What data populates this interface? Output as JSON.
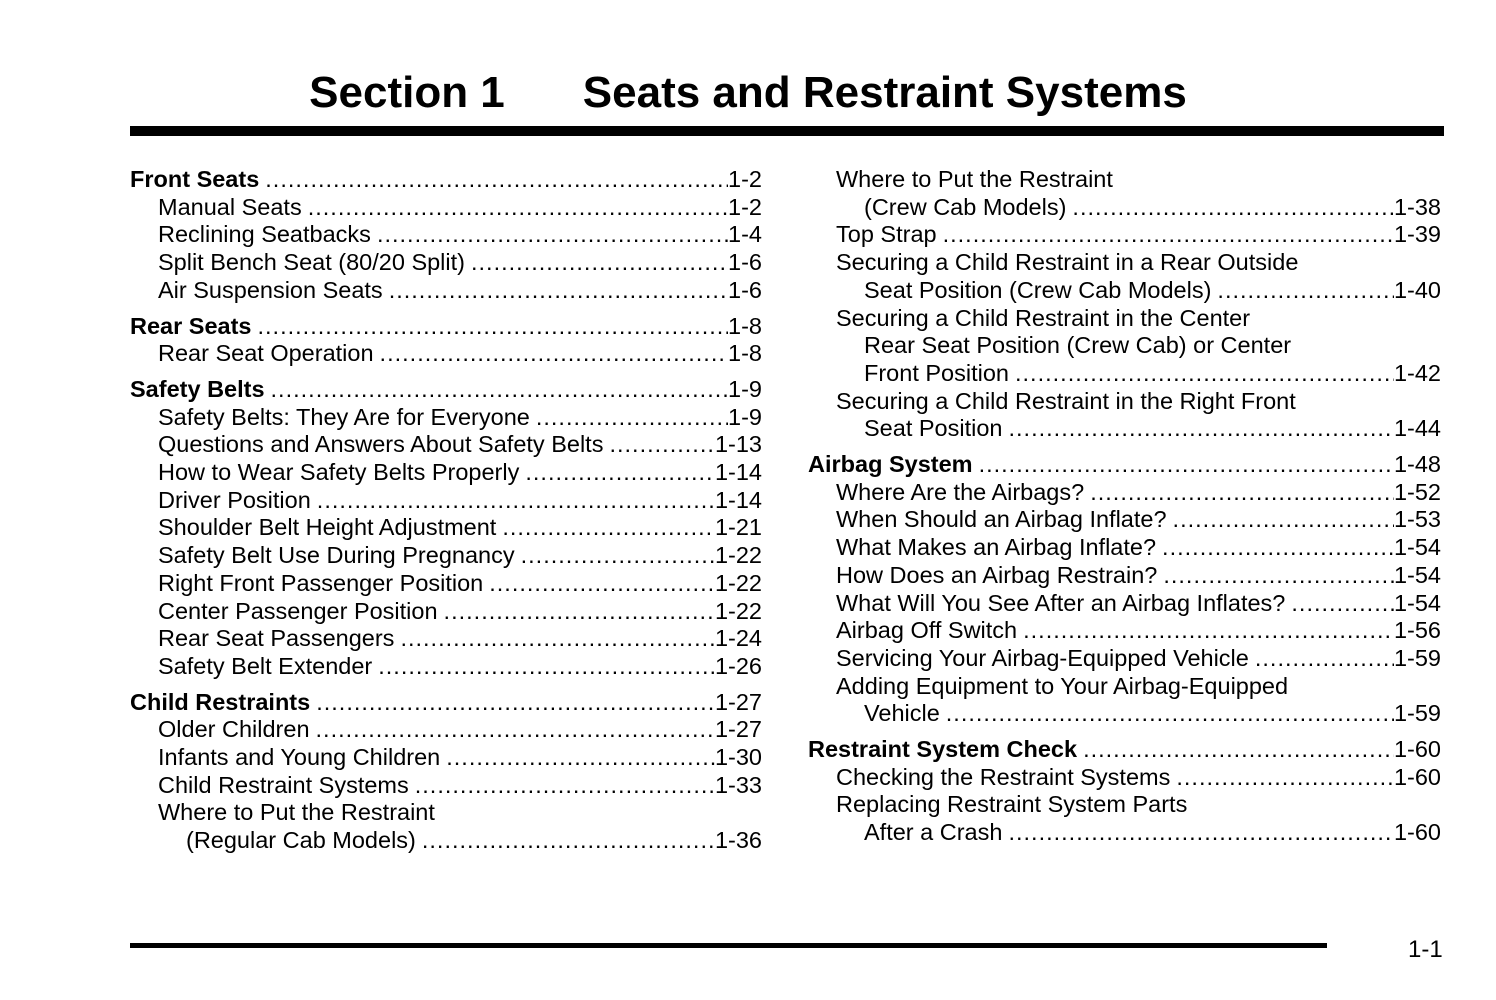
{
  "header": {
    "section": "Section 1",
    "title": "Seats and Restraint Systems"
  },
  "page_number": "1-1",
  "columns": [
    [
      {
        "title": "Front Seats",
        "page": "1-2",
        "items": [
          {
            "lines": [
              "Manual Seats"
            ],
            "page": "1-2"
          },
          {
            "lines": [
              "Reclining Seatbacks"
            ],
            "page": "1-4"
          },
          {
            "lines": [
              "Split Bench Seat (80/20 Split)"
            ],
            "page": "1-6"
          },
          {
            "lines": [
              "Air Suspension Seats"
            ],
            "page": "1-6"
          }
        ]
      },
      {
        "title": "Rear Seats",
        "page": "1-8",
        "items": [
          {
            "lines": [
              "Rear Seat Operation"
            ],
            "page": "1-8"
          }
        ]
      },
      {
        "title": "Safety Belts",
        "page": "1-9",
        "items": [
          {
            "lines": [
              "Safety Belts: They Are for Everyone"
            ],
            "page": "1-9"
          },
          {
            "lines": [
              "Questions and Answers About Safety Belts"
            ],
            "page": "1-13"
          },
          {
            "lines": [
              "How to Wear Safety Belts Properly"
            ],
            "page": "1-14"
          },
          {
            "lines": [
              "Driver Position"
            ],
            "page": "1-14"
          },
          {
            "lines": [
              "Shoulder Belt Height Adjustment"
            ],
            "page": "1-21"
          },
          {
            "lines": [
              "Safety Belt Use During Pregnancy"
            ],
            "page": "1-22"
          },
          {
            "lines": [
              "Right Front Passenger Position"
            ],
            "page": "1-22"
          },
          {
            "lines": [
              "Center Passenger Position"
            ],
            "page": "1-22"
          },
          {
            "lines": [
              "Rear Seat Passengers"
            ],
            "page": "1-24"
          },
          {
            "lines": [
              "Safety Belt Extender"
            ],
            "page": "1-26"
          }
        ]
      },
      {
        "title": "Child Restraints",
        "page": "1-27",
        "items": [
          {
            "lines": [
              "Older Children"
            ],
            "page": "1-27"
          },
          {
            "lines": [
              "Infants and Young Children"
            ],
            "page": "1-30"
          },
          {
            "lines": [
              "Child Restraint Systems"
            ],
            "page": "1-33"
          },
          {
            "lines": [
              "Where to Put the Restraint",
              "(Regular Cab Models)"
            ],
            "page": "1-36"
          }
        ]
      }
    ],
    [
      {
        "title": null,
        "page": null,
        "items": [
          {
            "lines": [
              "Where to Put the Restraint",
              "(Crew Cab Models)"
            ],
            "page": "1-38"
          },
          {
            "lines": [
              "Top Strap"
            ],
            "page": "1-39"
          },
          {
            "lines": [
              "Securing a Child Restraint in a Rear Outside",
              "Seat Position (Crew Cab Models)"
            ],
            "page": "1-40"
          },
          {
            "lines": [
              "Securing a Child Restraint in the Center",
              "Rear Seat Position (Crew Cab) or Center",
              "Front Position"
            ],
            "page": "1-42"
          },
          {
            "lines": [
              "Securing a Child Restraint in the Right Front",
              "Seat Position"
            ],
            "page": "1-44"
          }
        ]
      },
      {
        "title": "Airbag System",
        "page": "1-48",
        "items": [
          {
            "lines": [
              "Where Are the Airbags?"
            ],
            "page": "1-52"
          },
          {
            "lines": [
              "When Should an Airbag Inflate?"
            ],
            "page": "1-53"
          },
          {
            "lines": [
              "What Makes an Airbag Inflate?"
            ],
            "page": "1-54"
          },
          {
            "lines": [
              "How Does an Airbag Restrain?"
            ],
            "page": "1-54"
          },
          {
            "lines": [
              "What Will You See After an Airbag Inflates?"
            ],
            "page": "1-54"
          },
          {
            "lines": [
              "Airbag Off Switch"
            ],
            "page": "1-56"
          },
          {
            "lines": [
              "Servicing Your Airbag-Equipped Vehicle"
            ],
            "page": "1-59"
          },
          {
            "lines": [
              "Adding Equipment to Your Airbag-Equipped",
              "Vehicle"
            ],
            "page": "1-59"
          }
        ]
      },
      {
        "title": "Restraint System Check",
        "page": "1-60",
        "items": [
          {
            "lines": [
              "Checking the Restraint Systems"
            ],
            "page": "1-60"
          },
          {
            "lines": [
              "Replacing Restraint System Parts",
              "After a Crash"
            ],
            "page": "1-60"
          }
        ]
      }
    ]
  ]
}
